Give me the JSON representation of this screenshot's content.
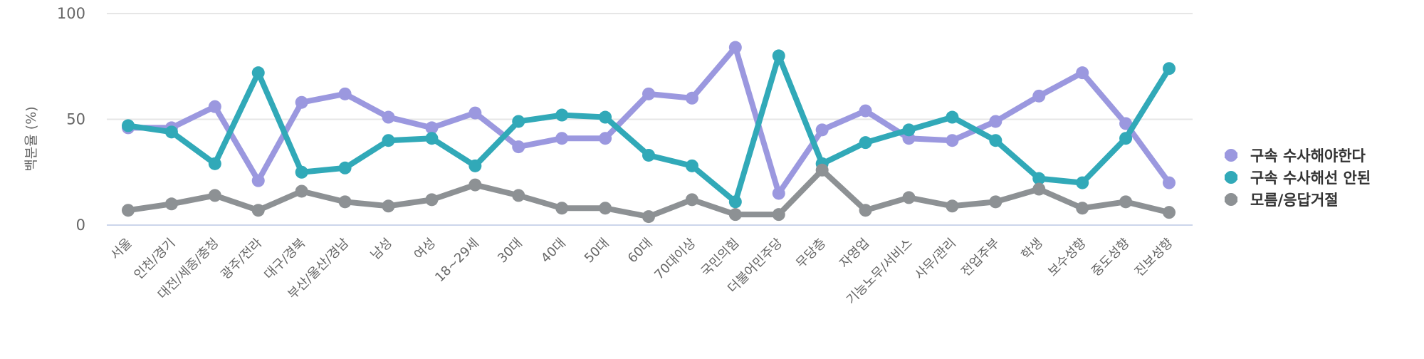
{
  "chart_data": {
    "type": "line",
    "title": "",
    "xlabel": "",
    "ylabel": "백분율 (%)",
    "ylim": [
      0,
      100
    ],
    "yticks": [
      0,
      50,
      100
    ],
    "grid": true,
    "legend_position": "right",
    "categories": [
      "서울",
      "인천/경기",
      "대전/세종/충청",
      "광주/전라",
      "대구/경북",
      "부산/울산/경남",
      "남성",
      "여성",
      "18~29세",
      "30대",
      "40대",
      "50대",
      "60대",
      "70대이상",
      "국민의힘",
      "더불어민주당",
      "무당층",
      "자영업",
      "기능노무/서비스",
      "사무/관리",
      "전업주부",
      "학생",
      "보수성향",
      "중도성향",
      "진보성향"
    ],
    "series": [
      {
        "name": "구속 수사해야한다",
        "color": "#9b98df",
        "values": [
          46,
          46,
          56,
          21,
          58,
          62,
          51,
          46,
          53,
          37,
          41,
          41,
          62,
          60,
          84,
          15,
          45,
          54,
          41,
          40,
          49,
          61,
          72,
          48,
          20
        ]
      },
      {
        "name": "구속 수사해선 안된",
        "color": "#31a9b8",
        "values": [
          47,
          44,
          29,
          72,
          25,
          27,
          40,
          41,
          28,
          49,
          52,
          51,
          33,
          28,
          11,
          80,
          29,
          39,
          45,
          51,
          40,
          22,
          20,
          41,
          74
        ]
      },
      {
        "name": "모름/응답거절",
        "color": "#8d9194",
        "values": [
          7,
          10,
          14,
          7,
          16,
          11,
          9,
          12,
          19,
          14,
          8,
          8,
          4,
          12,
          5,
          5,
          26,
          7,
          13,
          9,
          11,
          17,
          8,
          11,
          6
        ]
      }
    ]
  }
}
